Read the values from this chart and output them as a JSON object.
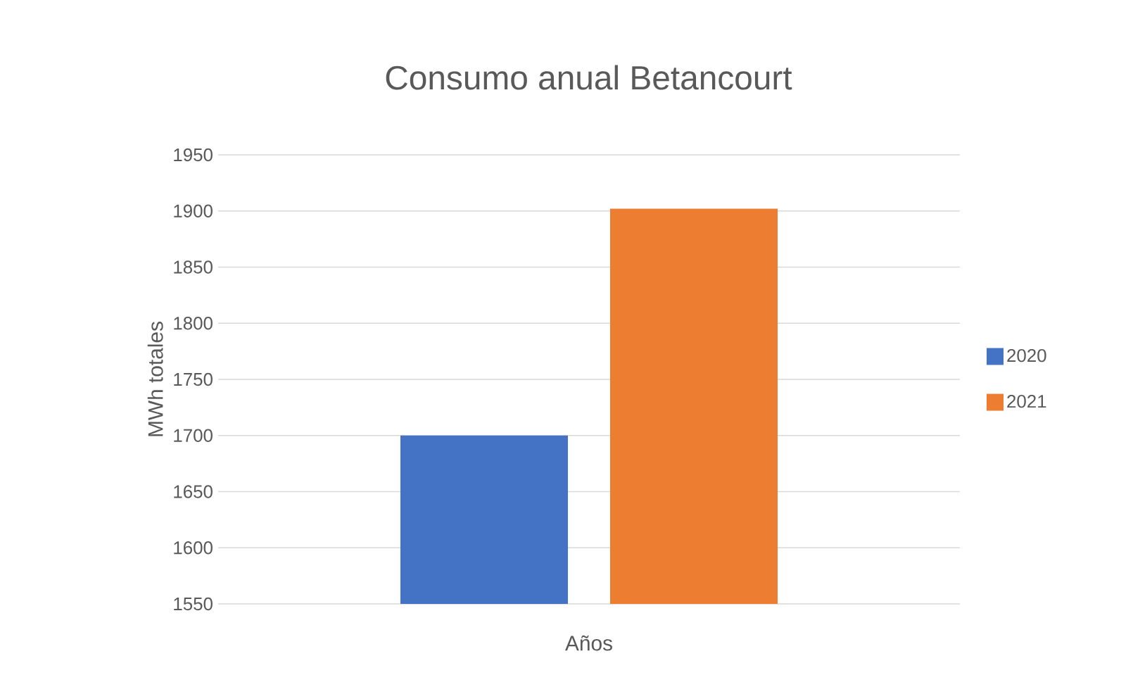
{
  "chart_data": {
    "type": "bar",
    "title": "Consumo anual Betancourt",
    "xlabel": "Años",
    "ylabel": "MWh totales",
    "categories": [
      null
    ],
    "series": [
      {
        "name": "2020",
        "color": "#4472c4",
        "values": [
          1700
        ]
      },
      {
        "name": "2021",
        "color": "#ed7d31",
        "values": [
          1902
        ]
      }
    ],
    "ylim": [
      1550,
      1950
    ],
    "yticks": [
      1550,
      1600,
      1650,
      1700,
      1750,
      1800,
      1850,
      1900,
      1950
    ],
    "grid": "y",
    "legend": "right"
  }
}
